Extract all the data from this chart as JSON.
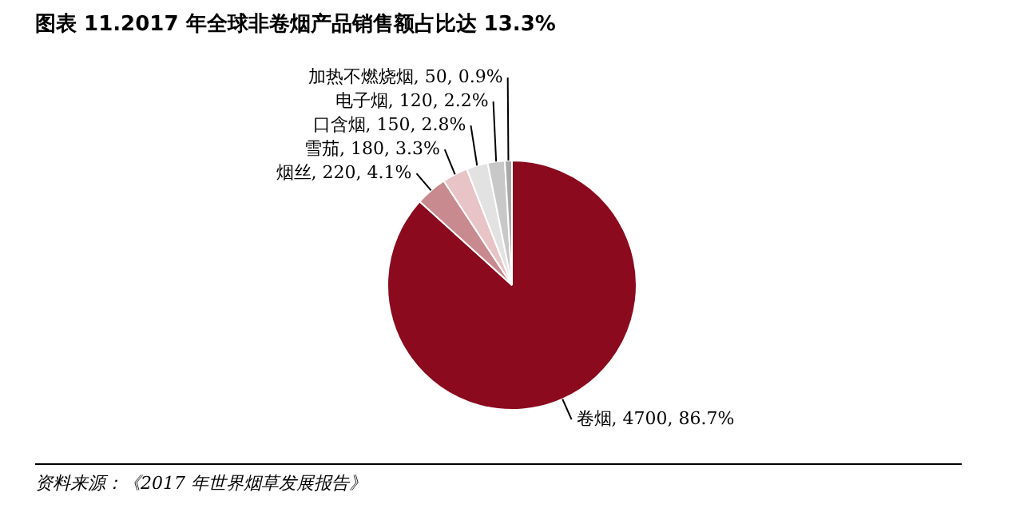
{
  "chart_data": {
    "type": "pie",
    "title": "图表 11.2017 年全球非卷烟产品销售额占比达 13.3%",
    "categories": [
      "卷烟",
      "烟丝",
      "雪茄",
      "口含烟",
      "电子烟",
      "加热不燃烧烟"
    ],
    "values": [
      4700,
      220,
      180,
      150,
      120,
      50
    ],
    "value_labels": [
      "4700, 86.7%",
      "220, 4.1%",
      "180, 3.3%",
      "150, 2.8%",
      "120, 2.2%",
      "50, 0.9%"
    ],
    "colors": [
      "#8b0a1e",
      "#c98a8f",
      "#e8c4c6",
      "#e2e2e2",
      "#c8c8c8",
      "#a8a8a8"
    ],
    "legend": false,
    "annotations": [
      "资料来源：《2017 年世界烟草发展报告》"
    ]
  }
}
